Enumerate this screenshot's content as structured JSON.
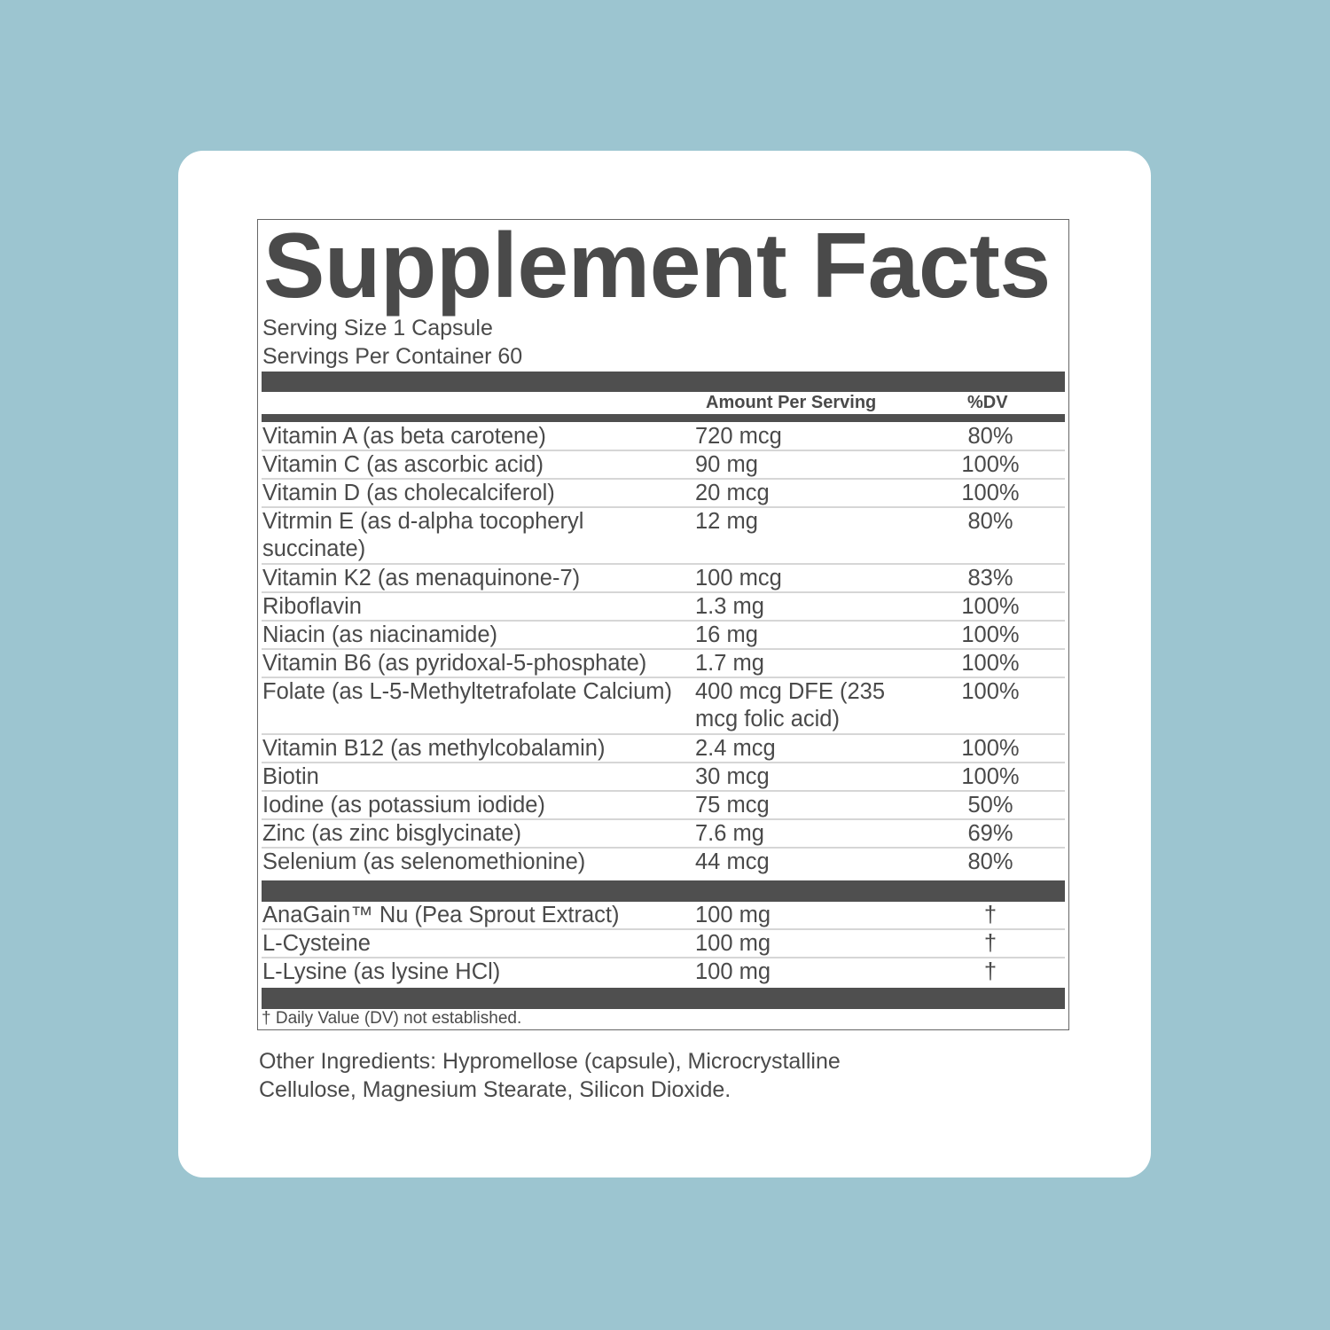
{
  "title": "Supplement Facts",
  "serving_size": "Serving Size 1 Capsule",
  "servings_per_container": "Servings Per Container 60",
  "headers": {
    "amount": "Amount Per Serving",
    "dv": "%DV"
  },
  "vitamins": [
    {
      "name": "Vitamin A (as beta carotene)",
      "amount": "720 mcg",
      "dv": "80%"
    },
    {
      "name": "Vitamin C (as ascorbic acid)",
      "amount": "90 mg",
      "dv": "100%"
    },
    {
      "name": "Vitamin D (as cholecalciferol)",
      "amount": "20 mcg",
      "dv": "100%"
    },
    {
      "name": "Vitrmin E (as d-alpha tocopheryl succinate)",
      "amount": "12 mg",
      "dv": "80%"
    },
    {
      "name": "Vitamin K2 (as menaquinone-7)",
      "amount": "100 mcg",
      "dv": "83%"
    },
    {
      "name": "Riboflavin",
      "amount": "1.3 mg",
      "dv": "100%"
    },
    {
      "name": "Niacin (as niacinamide)",
      "amount": "16 mg",
      "dv": "100%"
    },
    {
      "name": "Vitamin B6 (as pyridoxal-5-phosphate)",
      "amount": "1.7 mg",
      "dv": "100%"
    },
    {
      "name": "Folate (as L-5-Methyltetrafolate Calcium)",
      "amount": "400 mcg DFE (235 mcg folic acid)",
      "dv": "100%"
    },
    {
      "name": "Vitamin B12 (as methylcobalamin)",
      "amount": "2.4 mcg",
      "dv": "100%"
    },
    {
      "name": "Biotin",
      "amount": "30 mcg",
      "dv": "100%"
    },
    {
      "name": "Iodine (as potassium iodide)",
      "amount": "75 mcg",
      "dv": "50%"
    },
    {
      "name": "Zinc (as zinc bisglycinate)",
      "amount": "7.6 mg",
      "dv": "69%"
    },
    {
      "name": "Selenium (as selenomethionine)",
      "amount": "44 mcg",
      "dv": "80%"
    }
  ],
  "others": [
    {
      "name": "AnaGain™ Nu (Pea Sprout Extract)",
      "amount": "100 mg",
      "dv": "†"
    },
    {
      "name": "L-Cysteine",
      "amount": "100 mg",
      "dv": "†"
    },
    {
      "name": "L-Lysine (as lysine HCl)",
      "amount": "100 mg",
      "dv": "†"
    }
  ],
  "footnote": "† Daily Value (DV) not established.",
  "other_ingredients": "Other Ingredients: Hypromellose (capsule), Microcrystalline Cellulose, Magnesium Stearate, Silicon Dioxide."
}
